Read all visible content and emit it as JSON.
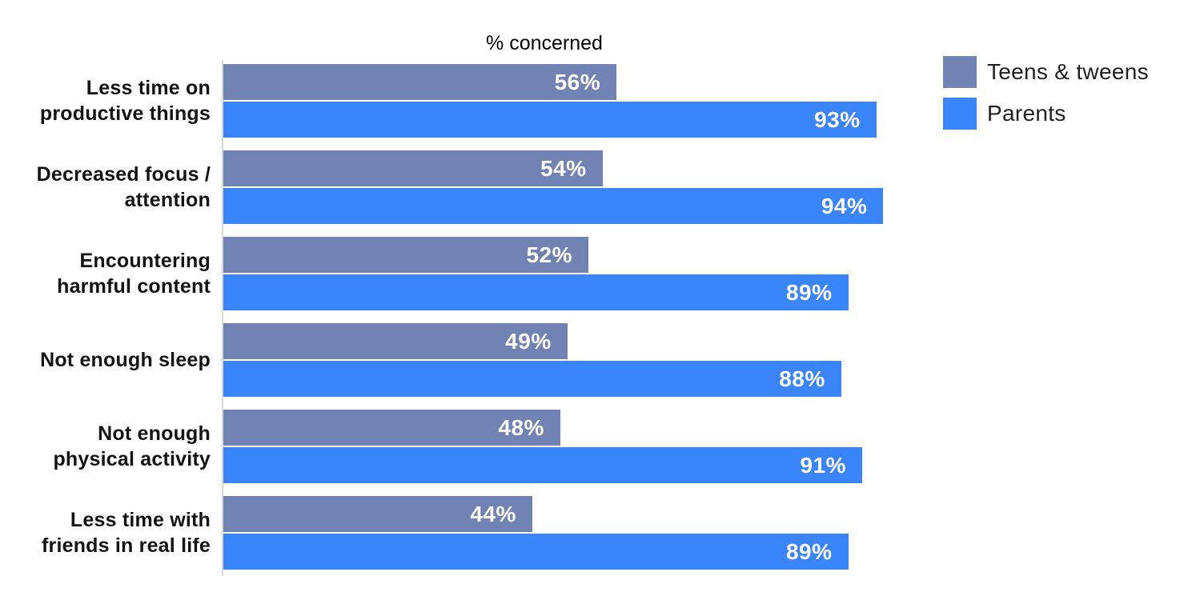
{
  "chart_data": {
    "type": "bar",
    "orientation": "horizontal",
    "title": "% concerned",
    "categories": [
      "Less time on\nproductive things",
      "Decreased focus /\nattention",
      "Encountering\nharmful content",
      "Not enough sleep",
      "Not enough\nphysical activity",
      "Less time with\nfriends in real life"
    ],
    "series": [
      {
        "name": "Teens & tweens",
        "color": "#7183b3",
        "values": [
          56,
          54,
          52,
          49,
          48,
          44
        ]
      },
      {
        "name": "Parents",
        "color": "#3b85fa",
        "values": [
          93,
          94,
          89,
          88,
          91,
          89
        ]
      }
    ],
    "value_suffix": "%",
    "xlim": [
      0,
      100
    ],
    "grid": false,
    "legend_position": "top-right",
    "axis_line_color": "#d9d9d9",
    "value_label_color": "#ffffff",
    "category_label_color": "#141414"
  }
}
